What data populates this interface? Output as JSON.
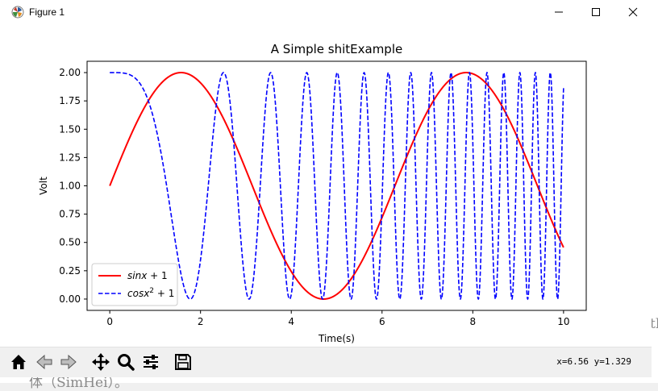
{
  "window": {
    "title": "Figure 1"
  },
  "background_fragments": {
    "right_edge": "th",
    "bottom_left": "体（SimHei）。"
  },
  "toolbar": {
    "buttons": [
      {
        "name": "home-button",
        "icon": "home-icon"
      },
      {
        "name": "back-button",
        "icon": "arrow-left-icon"
      },
      {
        "name": "forward-button",
        "icon": "arrow-right-icon"
      },
      {
        "name": "pan-button",
        "icon": "move-icon"
      },
      {
        "name": "zoom-button",
        "icon": "magnifier-icon"
      },
      {
        "name": "configure-subplots-button",
        "icon": "sliders-icon"
      },
      {
        "name": "save-button",
        "icon": "floppy-disk-icon"
      }
    ],
    "coordinates": "x=6.56 y=1.329"
  },
  "chart_data": {
    "type": "line",
    "title": "A Simple shitExample",
    "xlabel": "Time(s)",
    "ylabel": "Volt",
    "xlim": [
      -0.5,
      10.5
    ],
    "ylim": [
      -0.1,
      2.1
    ],
    "xticks": [
      "0",
      "2",
      "4",
      "6",
      "8",
      "10"
    ],
    "yticks": [
      "0.00",
      "0.25",
      "0.50",
      "0.75",
      "1.00",
      "1.25",
      "1.50",
      "1.75",
      "2.00"
    ],
    "grid": false,
    "legend_position": "lower-left",
    "series": [
      {
        "name": "sinx + 1",
        "label_main": "sinx",
        "label_rest": " + 1",
        "function": "sin(x)+1",
        "x_range": [
          0,
          10
        ],
        "color": "#ff0000",
        "style": "solid"
      },
      {
        "name": "cosx² + 1",
        "label_main": "cosx",
        "label_sup": "2",
        "label_rest": " + 1",
        "function": "cos(x^2)+1",
        "x_range": [
          0,
          10
        ],
        "color": "#0000ff",
        "style": "dashed"
      }
    ]
  }
}
